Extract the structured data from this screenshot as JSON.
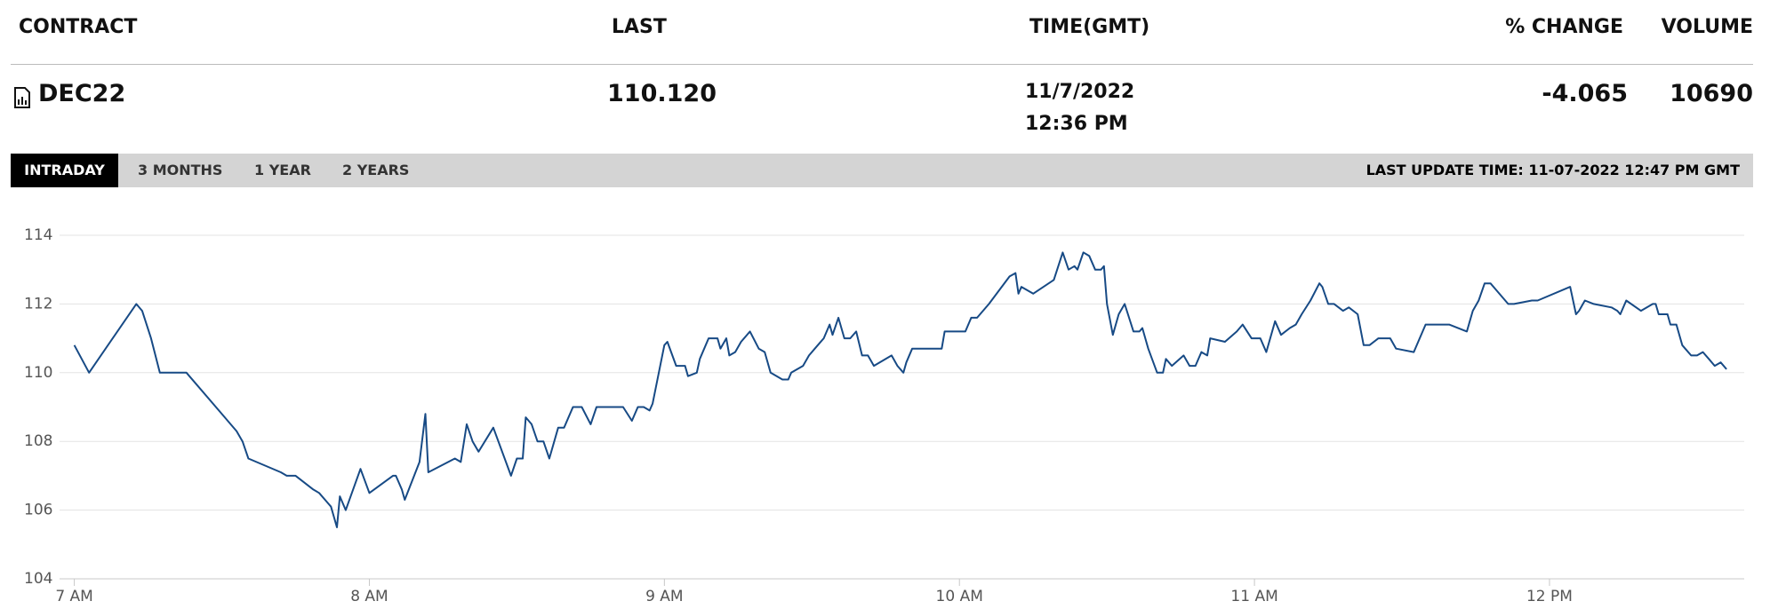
{
  "table": {
    "headers": [
      "CONTRACT",
      "LAST",
      "TIME(GMT)",
      "% CHANGE",
      "VOLUME"
    ],
    "row": {
      "contract": "DEC22",
      "last": "110.120",
      "date": "11/7/2022",
      "time": "12:36 PM",
      "change": "-4.065",
      "volume": "10690"
    }
  },
  "tabs": [
    "INTRADAY",
    "3 MONTHS",
    "1 YEAR",
    "2 YEARS"
  ],
  "last_update": "LAST UPDATE TIME: 11-07-2022 12:47 PM GMT",
  "chart_data": {
    "type": "line",
    "color": "#174a85",
    "grid": true,
    "xlim": [
      6.95,
      12.66
    ],
    "ylim": [
      104,
      114
    ],
    "xticks": [
      {
        "value": 7,
        "label": "7 AM"
      },
      {
        "value": 8,
        "label": "8 AM"
      },
      {
        "value": 9,
        "label": "9 AM"
      },
      {
        "value": 10,
        "label": "10 AM"
      },
      {
        "value": 11,
        "label": "11 AM"
      },
      {
        "value": 12,
        "label": "12 PM"
      }
    ],
    "yticks": [
      104,
      106,
      108,
      110,
      112,
      114
    ],
    "x": [
      7.0,
      7.05,
      7.21,
      7.23,
      7.26,
      7.29,
      7.38,
      7.55,
      7.57,
      7.59,
      7.7,
      7.72,
      7.75,
      7.81,
      7.83,
      7.86,
      7.87,
      7.89,
      7.9,
      7.92,
      7.97,
      8.0,
      8.08,
      8.09,
      8.11,
      8.12,
      8.17,
      8.19,
      8.2,
      8.29,
      8.31,
      8.33,
      8.35,
      8.37,
      8.42,
      8.48,
      8.5,
      8.52,
      8.53,
      8.55,
      8.57,
      8.59,
      8.61,
      8.64,
      8.66,
      8.69,
      8.72,
      8.75,
      8.77,
      8.86,
      8.89,
      8.91,
      8.93,
      8.95,
      8.96,
      9.0,
      9.01,
      9.04,
      9.07,
      9.08,
      9.11,
      9.12,
      9.15,
      9.18,
      9.19,
      9.21,
      9.22,
      9.24,
      9.26,
      9.29,
      9.32,
      9.34,
      9.36,
      9.4,
      9.42,
      9.43,
      9.47,
      9.49,
      9.52,
      9.54,
      9.56,
      9.57,
      9.59,
      9.61,
      9.63,
      9.65,
      9.67,
      9.69,
      9.71,
      9.77,
      9.79,
      9.81,
      9.82,
      9.84,
      9.94,
      9.95,
      10.02,
      10.04,
      10.06,
      10.1,
      10.17,
      10.19,
      10.2,
      10.21,
      10.25,
      10.32,
      10.35,
      10.37,
      10.39,
      10.4,
      10.42,
      10.44,
      10.46,
      10.48,
      10.49,
      10.5,
      10.52,
      10.54,
      10.56,
      10.59,
      10.61,
      10.62,
      10.64,
      10.67,
      10.69,
      10.7,
      10.72,
      10.76,
      10.78,
      10.8,
      10.82,
      10.84,
      10.85,
      10.9,
      10.94,
      10.96,
      10.99,
      11.02,
      11.04,
      11.07,
      11.09,
      11.12,
      11.14,
      11.16,
      11.19,
      11.22,
      11.23,
      11.25,
      11.27,
      11.3,
      11.32,
      11.35,
      11.37,
      11.39,
      11.42,
      11.46,
      11.48,
      11.54,
      11.58,
      11.66,
      11.72,
      11.74,
      11.76,
      11.78,
      11.8,
      11.82,
      11.86,
      11.88,
      11.94,
      11.96,
      12.07,
      12.09,
      12.1,
      12.12,
      12.15,
      12.21,
      12.23,
      12.24,
      12.26,
      12.31,
      12.33,
      12.35,
      12.36,
      12.37,
      12.4,
      12.41,
      12.43,
      12.45,
      12.46,
      12.48,
      12.5,
      12.52,
      12.54,
      12.56,
      12.58,
      12.6
    ],
    "values": [
      110.8,
      110.0,
      112.0,
      111.8,
      111.0,
      110.0,
      110.0,
      108.3,
      108.0,
      107.5,
      107.1,
      107.0,
      107.0,
      106.6,
      106.5,
      106.2,
      106.1,
      105.5,
      106.4,
      106.0,
      107.2,
      106.5,
      107.0,
      107.0,
      106.6,
      106.3,
      107.4,
      108.8,
      107.1,
      107.5,
      107.4,
      108.5,
      108.0,
      107.7,
      108.4,
      107.0,
      107.5,
      107.5,
      108.7,
      108.5,
      108.0,
      108.0,
      107.5,
      108.4,
      108.4,
      109.0,
      109.0,
      108.5,
      109.0,
      109.0,
      108.6,
      109.0,
      109.0,
      108.9,
      109.1,
      110.8,
      110.9,
      110.2,
      110.2,
      109.9,
      110.0,
      110.4,
      111.0,
      111.0,
      110.7,
      111.0,
      110.5,
      110.6,
      110.9,
      111.2,
      110.7,
      110.6,
      110.0,
      109.8,
      109.8,
      110.0,
      110.2,
      110.5,
      110.8,
      111.0,
      111.4,
      111.1,
      111.6,
      111.0,
      111.0,
      111.2,
      110.5,
      110.5,
      110.2,
      110.5,
      110.2,
      110.0,
      110.3,
      110.7,
      110.7,
      111.2,
      111.2,
      111.6,
      111.6,
      112.0,
      112.8,
      112.9,
      112.3,
      112.5,
      112.3,
      112.7,
      113.5,
      113.0,
      113.1,
      113.0,
      113.5,
      113.4,
      113.0,
      113.0,
      113.1,
      112.0,
      111.1,
      111.7,
      112.0,
      111.2,
      111.2,
      111.3,
      110.7,
      110.0,
      110.0,
      110.4,
      110.2,
      110.5,
      110.2,
      110.2,
      110.6,
      110.5,
      111.0,
      110.9,
      111.2,
      111.4,
      111.0,
      111.0,
      110.6,
      111.5,
      111.1,
      111.3,
      111.4,
      111.7,
      112.1,
      112.6,
      112.5,
      112.0,
      112.0,
      111.8,
      111.9,
      111.7,
      110.8,
      110.8,
      111.0,
      111.0,
      110.7,
      110.6,
      111.4,
      111.4,
      111.2,
      111.8,
      112.1,
      112.6,
      112.6,
      112.4,
      112.0,
      112.0,
      112.1,
      112.1,
      112.5,
      111.7,
      111.8,
      112.1,
      112.0,
      111.9,
      111.8,
      111.7,
      112.1,
      111.8,
      111.9,
      112.0,
      112.0,
      111.7,
      111.7,
      111.4,
      111.4,
      110.8,
      110.7,
      110.5,
      110.5,
      110.6,
      110.4,
      110.2,
      110.3,
      110.1
    ]
  }
}
